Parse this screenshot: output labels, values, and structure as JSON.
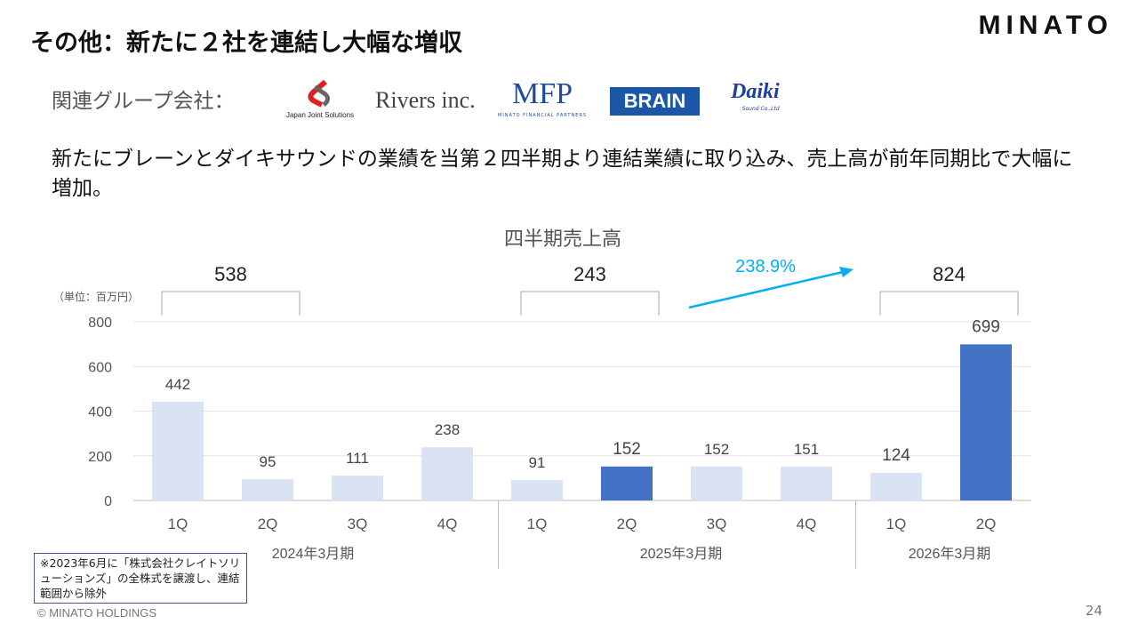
{
  "header": {
    "title": "その他：新たに２社を連結し大幅な増収",
    "brand": "MINATO"
  },
  "group": {
    "label": "関連グループ会社：",
    "logos": [
      "Japan Joint Solutions",
      "Rivers inc.",
      "MFP",
      "MINATO FINANCIAL PARTNERS",
      "BRAIN",
      "Daiki",
      "Sound Co.,Ltd"
    ]
  },
  "lead": "新たにブレーンとダイキサウンドの業績を当第２四半期より連結業績に取り込み、売上高が前年同期比で大幅に増加。",
  "note": "※2023年6月に「株式会社クレイトソリューションズ」の全株式を譲渡し、連結範囲から除外",
  "footer": {
    "copyright": "© MINATO HOLDINGS",
    "page": "24"
  },
  "colors": {
    "light": "#dae3f3",
    "dark": "#4472c4",
    "arrow": "#00b0f0"
  },
  "chart_data": {
    "type": "bar",
    "title": "四半期売上高",
    "unit": "（単位：百万円）",
    "ylim": [
      0,
      800
    ],
    "yticks": [
      0,
      200,
      400,
      600,
      800
    ],
    "grid": true,
    "categories": [
      "1Q",
      "2Q",
      "3Q",
      "4Q",
      "1Q",
      "2Q",
      "3Q",
      "4Q",
      "1Q",
      "2Q"
    ],
    "values": [
      442,
      95,
      111,
      238,
      91,
      152,
      152,
      151,
      124,
      699
    ],
    "highlight": [
      false,
      false,
      false,
      false,
      false,
      true,
      false,
      false,
      false,
      true
    ],
    "groups": [
      {
        "label": "2024年3月期",
        "total": "538",
        "span": [
          0,
          1
        ]
      },
      {
        "label": "2025年3月期",
        "total": "243",
        "span": [
          4,
          5
        ]
      },
      {
        "label": "2026年3月期",
        "total": "824",
        "span": [
          8,
          9
        ]
      }
    ],
    "annotation": "238.9%"
  }
}
